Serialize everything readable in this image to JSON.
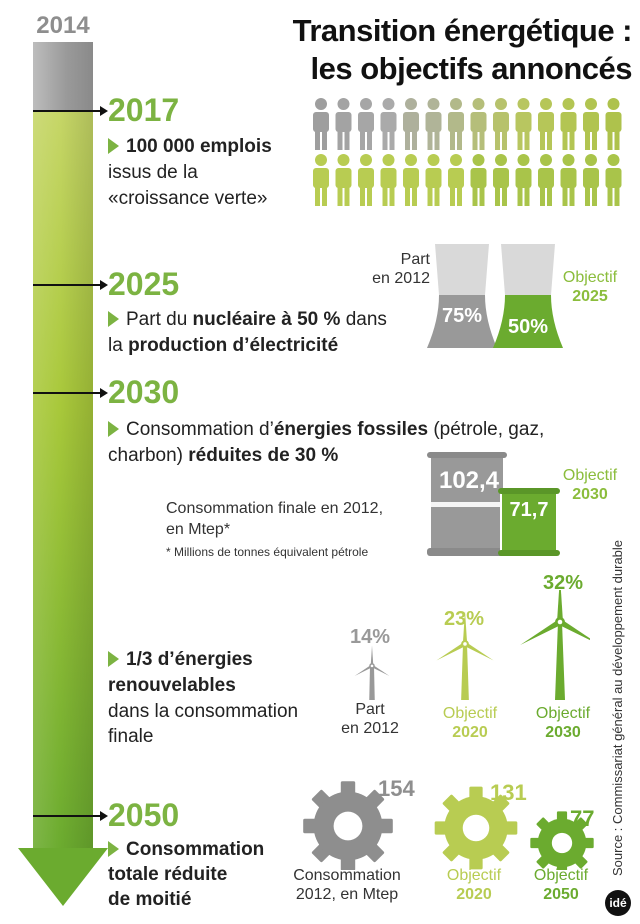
{
  "title": {
    "line1": "Transition énergétique :",
    "line2": "les objectifs annoncés"
  },
  "start_year": "2014",
  "milestones": {
    "y2017": {
      "year": "2017",
      "jobs_bold": "100 000 emplois",
      "line2": "issus de la",
      "line3": "«croissance verte»"
    },
    "y2025": {
      "year": "2025",
      "pre": "Part du ",
      "bold1": "nucléaire à 50 %",
      "mid": " dans",
      "pre2": "la ",
      "bold2": "production d’électricité",
      "part_line1": "Part",
      "part_line2": "en 2012",
      "value_2012": "75%",
      "value_2025": "50%",
      "share_2012": 75,
      "share_2025": 50,
      "objectif": "Objectif",
      "objectif_year": "2025"
    },
    "y2030": {
      "year": "2030",
      "pre": "Consommation d’",
      "bold1": "énergies fossiles",
      "post": " (pétrole, gaz,",
      "pre2": "charbon) ",
      "bold2": "réduites de 30 %",
      "value_2012": "102,4",
      "value_2030": "71,7",
      "conso_line1": "Consommation finale en 2012,",
      "conso_line2": "en Mtep*",
      "footnote": "* Millions de tonnes équivalent pétrole",
      "objectif": "Objectif",
      "objectif_year": "2030"
    },
    "renewables": {
      "bold1": "1/3 d’énergies",
      "bold2": "renouvelables",
      "line3": "dans la consommation",
      "line4": "finale",
      "items": [
        {
          "pct": "14%",
          "label1": "Part",
          "label2": "en 2012",
          "color": "#999999"
        },
        {
          "pct": "23%",
          "label1": "Objectif",
          "label2": "2020",
          "color": "#b8cc52"
        },
        {
          "pct": "32%",
          "label1": "Objectif",
          "label2": "2030",
          "color": "#6bab2f"
        }
      ]
    },
    "y2050": {
      "year": "2050",
      "bold1": "Consommation",
      "bold2": "totale réduite",
      "bold3": "de moitié",
      "gears": [
        {
          "value": "154",
          "label1": "Consommation",
          "label2": "2012, en Mtep",
          "color": "#8e8e8e"
        },
        {
          "value": "131",
          "label1": "Objectif",
          "label2": "2020",
          "color": "#b8cc52"
        },
        {
          "value": "77",
          "label1": "Objectif",
          "label2": "2050",
          "color": "#6bab2f"
        }
      ]
    }
  },
  "source": "Source : Commissariat général au développement durable",
  "logo": "idé",
  "colors": {
    "green_dark": "#6bab2f",
    "green_light": "#b8cc52",
    "grey": "#999999",
    "green_text": "#7cb342"
  }
}
